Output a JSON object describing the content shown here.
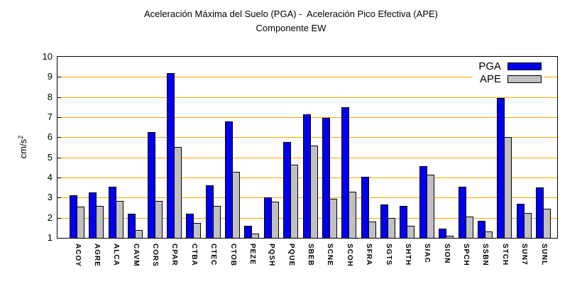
{
  "title": {
    "line1": "Aceleración Máxima del Suelo (PGA) -  Aceleración Pico Efectiva (APE)",
    "line2": "Componente EW"
  },
  "y_axis": {
    "label": "cm/s",
    "label_sup": "2",
    "min": 1,
    "max": 10
  },
  "legend": [
    {
      "name": "PGA",
      "color": "#0000ee"
    },
    {
      "name": "APE",
      "color": "#c0c0c0"
    }
  ],
  "colors": {
    "pga_bar": "#0000ee",
    "ape_bar": "#c0c0c0",
    "gridline": "#ffa500",
    "axis": "#000000",
    "background": "#ffffff"
  },
  "chart_data": {
    "type": "bar",
    "title": "Aceleración Máxima del Suelo (PGA) -  Aceleración Pico Efectiva (APE)",
    "subtitle": "Componente EW",
    "xlabel": "",
    "ylabel": "cm/s²",
    "ylim": [
      1,
      10
    ],
    "grid": true,
    "legend_position": "top-right",
    "categories": [
      "ACOY",
      "AGRE",
      "ALCA",
      "CAVM",
      "CORS",
      "CPAR",
      "CTBA",
      "CTEC",
      "CTOB",
      "PEZE",
      "PQSH",
      "PQUE",
      "SBEB",
      "SCNE",
      "SCOH",
      "SFRA",
      "SGTS",
      "SHTH",
      "SIAC",
      "SION",
      "SPCH",
      "SSBN",
      "STCH",
      "SUN7",
      "SUNL"
    ],
    "series": [
      {
        "name": "PGA",
        "color": "#0000ee",
        "values": [
          3.1,
          3.25,
          3.55,
          2.2,
          6.25,
          9.2,
          2.2,
          3.6,
          6.8,
          1.6,
          3.0,
          5.75,
          7.15,
          6.95,
          7.5,
          4.05,
          2.65,
          2.6,
          4.55,
          1.45,
          3.55,
          1.85,
          7.95,
          2.7,
          3.5
        ]
      },
      {
        "name": "APE",
        "color": "#c0c0c0",
        "values": [
          2.55,
          2.6,
          2.85,
          1.4,
          2.85,
          5.5,
          1.75,
          2.6,
          4.3,
          1.2,
          2.8,
          4.65,
          5.6,
          2.95,
          3.3,
          1.8,
          2.0,
          1.6,
          4.15,
          1.1,
          2.05,
          1.3,
          6.0,
          2.25,
          2.45
        ]
      }
    ]
  }
}
